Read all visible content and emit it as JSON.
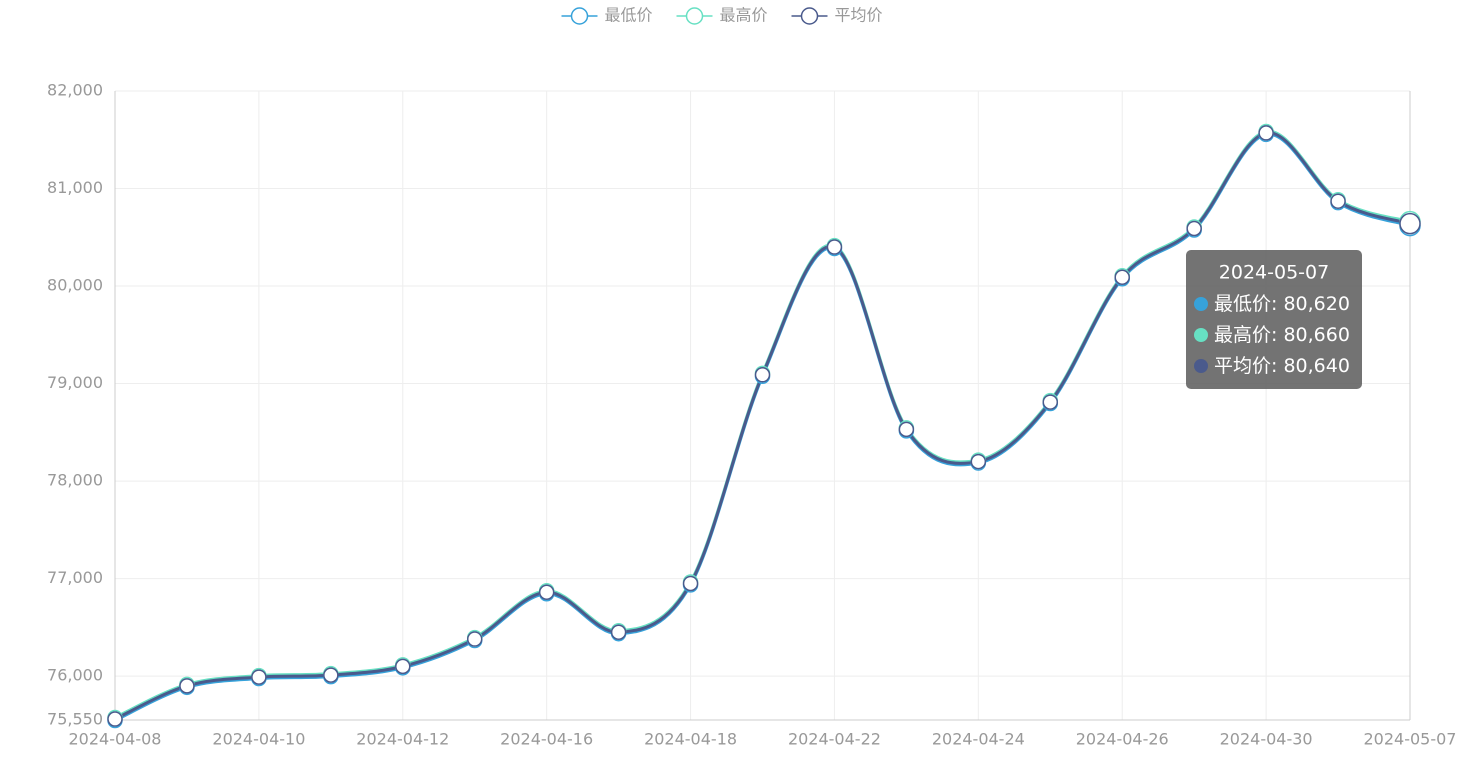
{
  "chart_data": {
    "type": "line",
    "categories": [
      "2024-04-08",
      null,
      "2024-04-10",
      null,
      "2024-04-12",
      null,
      "2024-04-16",
      null,
      "2024-04-18",
      null,
      "2024-04-22",
      null,
      "2024-04-24",
      null,
      "2024-04-26",
      null,
      "2024-04-30",
      null,
      "2024-05-07"
    ],
    "series": [
      {
        "name": "最低价",
        "color": "#37a2da",
        "values": [
          75545,
          75885,
          75975,
          75995,
          76085,
          76365,
          76845,
          76435,
          76935,
          79075,
          80385,
          78515,
          78185,
          78795,
          80075,
          80575,
          81555,
          80855,
          80620
        ]
      },
      {
        "name": "最高价",
        "color": "#67e0c3",
        "values": [
          75575,
          75915,
          76005,
          76025,
          76115,
          76395,
          76875,
          76465,
          76965,
          79105,
          80415,
          78545,
          78215,
          78825,
          80105,
          80605,
          81585,
          80885,
          80660
        ]
      },
      {
        "name": "平均价",
        "color": "#4a5a8c",
        "values": [
          75560,
          75900,
          75990,
          76010,
          76100,
          76380,
          76860,
          76450,
          76950,
          79090,
          80400,
          78530,
          78200,
          78810,
          80090,
          80590,
          81570,
          80870,
          80640
        ]
      }
    ],
    "ylim": [
      75550,
      82000
    ],
    "yticks": [
      {
        "value": 75550,
        "label": "75,550"
      },
      {
        "value": 76000,
        "label": "76,000"
      },
      {
        "value": 77000,
        "label": "77,000"
      },
      {
        "value": 78000,
        "label": "78,000"
      },
      {
        "value": 79000,
        "label": "79,000"
      },
      {
        "value": 80000,
        "label": "80,000"
      },
      {
        "value": 81000,
        "label": "81,000"
      },
      {
        "value": 82000,
        "label": "82,000"
      }
    ],
    "grid": true,
    "smooth": true,
    "legend": "top",
    "tooltip": {
      "labels": [
        "80,620",
        "80,660",
        "80,640"
      ]
    }
  }
}
